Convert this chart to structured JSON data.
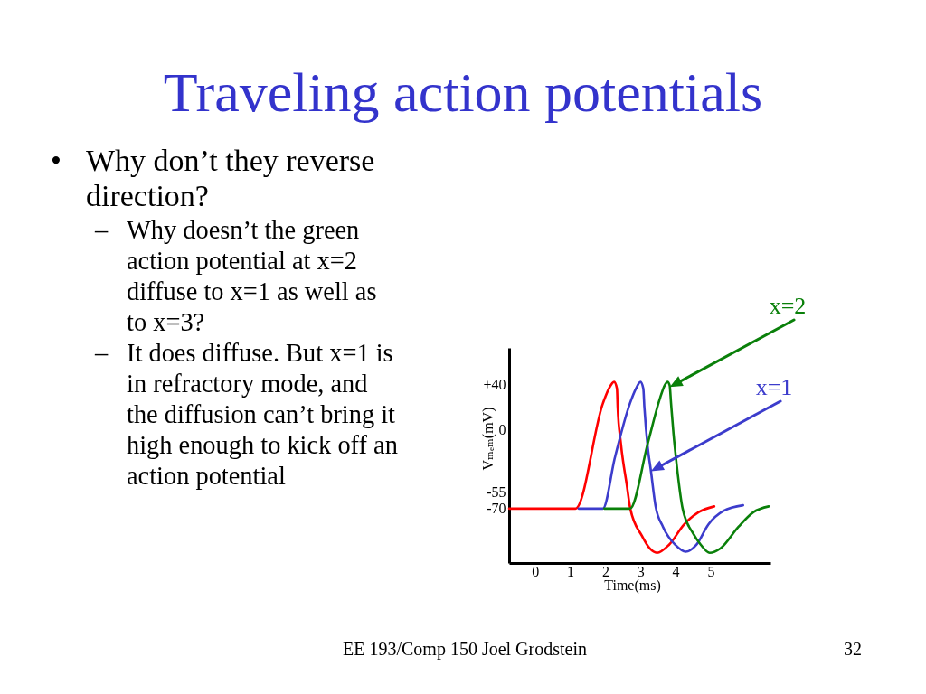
{
  "chart_data": {
    "type": "line",
    "title": "Traveling action potentials",
    "xlabel": "Time(ms)",
    "ylabel": "Vₘₑₘ(mV)",
    "xlim": [
      -0.74,
      6.7
    ],
    "xticks": [
      0,
      1,
      2,
      3,
      4,
      5
    ],
    "ylim": [
      -118,
      72
    ],
    "yticks": [
      -70,
      -55,
      0,
      {
        "value": 40,
        "label": "+40"
      }
    ],
    "line_style": "solid",
    "series": [
      {
        "color": "#ff0000",
        "x": [
          -0.74,
          1.15,
          1.93,
          2.1,
          2.25,
          2.33,
          2.35,
          2.44,
          2.61,
          2.71,
          3.04,
          3.26,
          3.47,
          3.81,
          4.24,
          4.66,
          5.1
        ],
        "values": [
          -70,
          -70,
          23,
          36,
          42,
          36,
          20,
          -12,
          -49,
          -70,
          -94,
          -105,
          -109,
          -102,
          -84,
          -73,
          -68
        ]
      },
      {
        "name": "x=1",
        "color": "#3c3ccc",
        "x": [
          1.24,
          1.93,
          2.27,
          2.7,
          2.87,
          3.0,
          3.08,
          3.11,
          3.21,
          3.29,
          3.43,
          3.64,
          3.99,
          4.29,
          4.59,
          4.93,
          5.36,
          5.92
        ],
        "values": [
          -70,
          -70,
          -25,
          23,
          36,
          42,
          36,
          20,
          -17,
          -35,
          -68,
          -86,
          -102,
          -108,
          -102,
          -84,
          -72,
          -67
        ]
      },
      {
        "name": "x=2",
        "color": "#0a800a",
        "x": [
          1.97,
          2.7,
          3.21,
          3.56,
          3.69,
          3.77,
          3.83,
          3.87,
          3.94,
          4.03,
          4.2,
          4.5,
          4.72,
          4.97,
          5.28,
          5.79,
          6.22,
          6.65
        ],
        "values": [
          -70,
          -70,
          -12,
          28,
          39,
          42,
          39,
          23,
          -4,
          -31,
          -70,
          -92,
          -102,
          -109,
          -105,
          -86,
          -73,
          -68
        ]
      }
    ],
    "annotations": [
      "• Why don’t they reverse direction?",
      "– Why doesn’t the green action potential at x=2 diffuse to x=1 as well as to x=3?",
      "– It does diffuse. But x=1 is in refractory mode, and the diffusion can’t bring it high enough to kick off an action potential",
      "EE 193/Comp 150 Joel Grodstein",
      "32"
    ]
  }
}
